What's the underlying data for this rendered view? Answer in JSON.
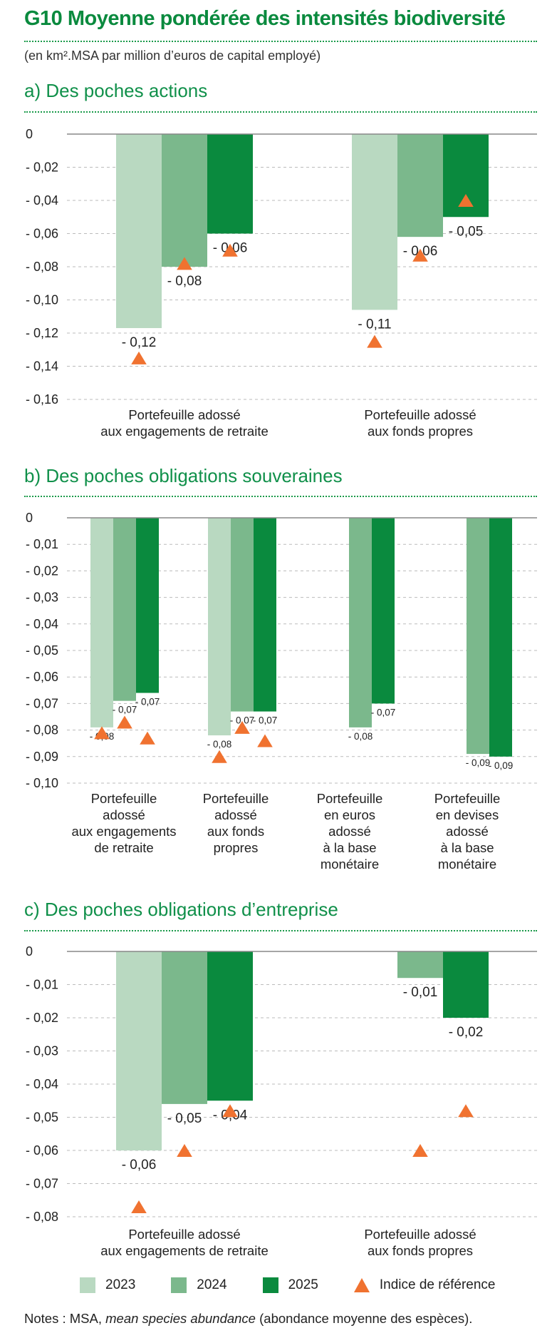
{
  "header": {
    "title": "G10  Moyenne pondérée des intensités biodiversité",
    "subtitle": "(en km².MSA par million d’euros de capital employé)"
  },
  "colors": {
    "2023": "#b9d9c1",
    "2024": "#7bb88c",
    "2025": "#0a8a3e",
    "reference": "#f07230",
    "title": "#0a8a3e",
    "grid": "#bbbbbb",
    "axis": "#888888"
  },
  "legend": {
    "s2023": "2023",
    "s2024": "2024",
    "s2025": "2025",
    "reference": "Indice de référence"
  },
  "notes": {
    "prefix": "Notes : MSA, ",
    "italic": "mean species abundance",
    "suffix": " (abondance moyenne des espèces)."
  },
  "chart_data": [
    {
      "type": "bar",
      "title": "a)  Des poches actions",
      "ylim": [
        -0.16,
        0
      ],
      "yticks": [
        0,
        -0.02,
        -0.04,
        -0.06,
        -0.08,
        -0.1,
        -0.12,
        -0.14,
        -0.16
      ],
      "ytick_labels": [
        "0",
        "- 0,02",
        "- 0,04",
        "- 0,06",
        "- 0,08",
        "- 0,10",
        "- 0,12",
        "- 0,14",
        "- 0,16"
      ],
      "grid": true,
      "categories": [
        "Portefeuille adossé\naux engagements de retraite",
        "Portefeuille adossé\naux fonds propres"
      ],
      "series": [
        {
          "name": "2023",
          "values": [
            -0.117,
            -0.106
          ],
          "labels": [
            "- 0,12",
            "- 0,11"
          ]
        },
        {
          "name": "2024",
          "values": [
            -0.08,
            -0.062
          ],
          "labels": [
            "- 0,08",
            "- 0,06"
          ]
        },
        {
          "name": "2025",
          "values": [
            -0.06,
            -0.05
          ],
          "labels": [
            "- 0,06",
            "- 0,05"
          ]
        }
      ],
      "reference": [
        [
          -0.135,
          -0.078,
          -0.07
        ],
        [
          -0.125,
          -0.073,
          -0.04
        ]
      ]
    },
    {
      "type": "bar",
      "title": "b)  Des poches obligations souveraines",
      "ylim": [
        -0.1,
        0
      ],
      "yticks": [
        0,
        -0.01,
        -0.02,
        -0.03,
        -0.04,
        -0.05,
        -0.06,
        -0.07,
        -0.08,
        -0.09,
        -0.1
      ],
      "ytick_labels": [
        "0",
        "- 0,01",
        "- 0,02",
        "- 0,03",
        "- 0,04",
        "- 0,05",
        "- 0,06",
        "- 0,07",
        "- 0,08",
        "- 0,09",
        "- 0,10"
      ],
      "grid": true,
      "categories": [
        "Portefeuille\nadossé\naux engagements\nde retraite",
        "Portefeuille\nadossé\naux fonds\npropres",
        "Portefeuille\nen euros\nadossé\nà la base\nmonétaire",
        "Portefeuille\nen devises\nadossé\nà la base\nmonétaire"
      ],
      "series": [
        {
          "name": "2023",
          "values": [
            -0.079,
            -0.082,
            null,
            null
          ],
          "labels": [
            "- 0,08",
            "- 0,08",
            null,
            null
          ]
        },
        {
          "name": "2024",
          "values": [
            -0.069,
            -0.073,
            -0.079,
            -0.089
          ],
          "labels": [
            "- 0,07",
            "- 0,07",
            "- 0,08",
            "- 0,09"
          ]
        },
        {
          "name": "2025",
          "values": [
            -0.066,
            -0.073,
            -0.07,
            -0.09
          ],
          "labels": [
            "- 0,07",
            "- 0,07",
            "- 0,07",
            "- 0,09"
          ]
        }
      ],
      "reference": [
        [
          -0.081,
          -0.077,
          -0.083
        ],
        [
          -0.09,
          -0.079,
          -0.084
        ],
        [
          null,
          null,
          null
        ],
        [
          null,
          null,
          null
        ]
      ]
    },
    {
      "type": "bar",
      "title": "c)  Des poches obligations d’entreprise",
      "ylim": [
        -0.08,
        0
      ],
      "yticks": [
        0,
        -0.01,
        -0.02,
        -0.03,
        -0.04,
        -0.05,
        -0.06,
        -0.07,
        -0.08
      ],
      "ytick_labels": [
        "0",
        "- 0,01",
        "- 0,02",
        "- 0,03",
        "- 0,04",
        "- 0,05",
        "- 0,06",
        "- 0,07",
        "- 0,08"
      ],
      "grid": true,
      "categories": [
        "Portefeuille adossé\naux engagements de retraite",
        "Portefeuille adossé\naux fonds propres"
      ],
      "series": [
        {
          "name": "2023",
          "values": [
            -0.06,
            null
          ],
          "labels": [
            "- 0,06",
            null
          ]
        },
        {
          "name": "2024",
          "values": [
            -0.046,
            -0.008
          ],
          "labels": [
            "- 0,05",
            "- 0,01"
          ]
        },
        {
          "name": "2025",
          "values": [
            -0.045,
            -0.02
          ],
          "labels": [
            "- 0,04",
            "- 0,02"
          ]
        }
      ],
      "reference": [
        [
          -0.077,
          -0.06,
          -0.048
        ],
        [
          null,
          -0.06,
          -0.048
        ]
      ]
    }
  ]
}
